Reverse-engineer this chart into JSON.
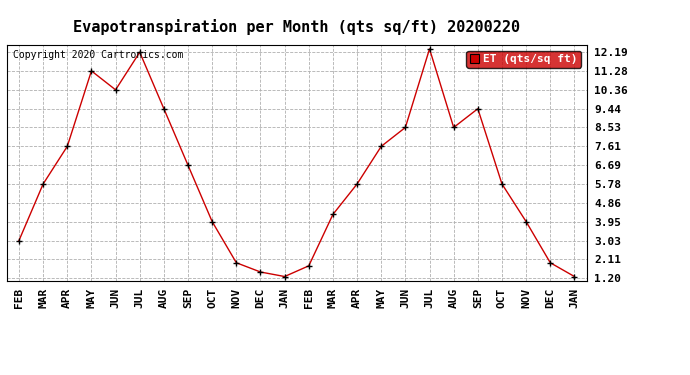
{
  "title": "Evapotranspiration per Month (qts sq/ft) 20200220",
  "copyright": "Copyright 2020 Cartronics.com",
  "legend_label": "ET (qts/sq ft)",
  "months": [
    "FEB",
    "MAR",
    "APR",
    "MAY",
    "JUN",
    "JUL",
    "AUG",
    "SEP",
    "OCT",
    "NOV",
    "DEC",
    "JAN",
    "FEB",
    "MAR",
    "APR",
    "MAY",
    "JUN",
    "JUL",
    "AUG",
    "SEP",
    "OCT",
    "NOV",
    "DEC",
    "JAN"
  ],
  "values": [
    3.03,
    5.78,
    7.61,
    11.28,
    10.36,
    12.19,
    9.44,
    6.69,
    3.95,
    1.95,
    1.5,
    1.28,
    1.8,
    4.3,
    5.78,
    7.61,
    8.53,
    12.35,
    8.53,
    9.44,
    5.78,
    3.95,
    1.95,
    1.28
  ],
  "yticks": [
    1.2,
    2.11,
    3.03,
    3.95,
    4.86,
    5.78,
    6.69,
    7.61,
    8.53,
    9.44,
    10.36,
    11.28,
    12.19
  ],
  "ylim_min": 1.2,
  "ylim_max": 12.19,
  "line_color": "#cc0000",
  "marker_color": "#000000",
  "bg_color": "#ffffff",
  "grid_color": "#b0b0b0",
  "title_fontsize": 11,
  "copyright_fontsize": 7,
  "tick_fontsize": 8,
  "legend_bg": "#cc0000",
  "legend_text_color": "#ffffff",
  "legend_fontsize": 8
}
